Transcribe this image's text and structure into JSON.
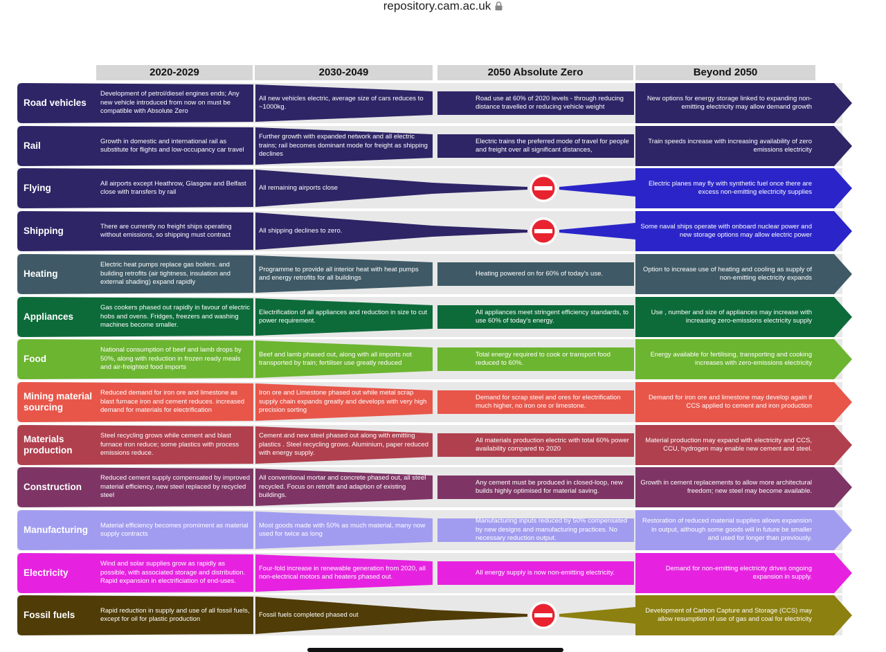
{
  "browser": {
    "url": "repository.cam.ac.uk",
    "lock_icon": "lock-icon"
  },
  "columns": [
    "2020-2029",
    "2030-2049",
    "2050 Absolute Zero",
    "Beyond 2050"
  ],
  "no_entry_icon": "no-entry-icon",
  "rows": [
    {
      "label": "Road vehicles",
      "color": "#2e2566",
      "type": "full",
      "c1": "Development of petrol/diesel engines ends; Any new vehicle introduced from now on must be compatible with Absolute Zero",
      "c2": "All new vehicles electric, average size of cars reduces to ~1000kg.",
      "c3": "Road use at 60% of 2020 levels - through reducing distance travelled or reducing vehicle weight",
      "c4": "New options for energy storage linked to expanding non-emitting electricity may allow demand growth"
    },
    {
      "label": "Rail",
      "color": "#2e2566",
      "type": "full",
      "c1": "Growth in domestic and international rail as substitute for flights and low-occupancy car travel",
      "c2": "Further growth with expanded network and all electric trains; rail becomes dominant mode for freight as shipping declines",
      "c3": "Electric trains the preferred mode of travel for people and freight over all significant distances,",
      "c4": "Train speeds increase with increasing availability of zero emissions electricity"
    },
    {
      "label": "Flying",
      "color": "#2e2566",
      "accent": "#2b25c9",
      "type": "stop",
      "c1": "All airports except Heathrow, Glasgow and Belfast close with transfers by rail",
      "c2": "All remaining airports close",
      "c3": "",
      "c4": "Electric planes may fly with synthetic fuel once there are excess non-emitting electricity supplies"
    },
    {
      "label": "Shipping",
      "color": "#2e2566",
      "accent": "#2b25c9",
      "type": "stop",
      "c1": "There are currently no freight ships operating without emissions, so shipping must contract",
      "c2": "All shipping declines to zero.",
      "c3": "",
      "c4": "Some naval ships operate with onboard nuclear power and new storage options may allow electric power"
    },
    {
      "label": "Heating",
      "color": "#3f5a66",
      "type": "full",
      "c1": "Electric heat pumps replace gas boilers. and building retrofits (air tightness, insulation and external shading) expand rapidly",
      "c2": "Programme to provide all interior heat with heat pumps and energy retrofits for all buildings",
      "c3": "Heating powered on for 60% of today's use.",
      "c4": "Option to increase use of heating and cooling as supply of non-emitting electricity expands"
    },
    {
      "label": "Appliances",
      "color": "#0d6b3a",
      "type": "full",
      "c1": "Gas cookers phased out rapidly in favour of electric hobs and ovens. Fridges, freezers and washing machines become smaller.",
      "c2": "Electrification of all appliances and reduction in size to cut power requirement.",
      "c3": "All appliances meet stringent efficiency standards, to use 60% of today's energy.",
      "c4": "Use , number and size of appliances may increase with increasing zero-emissions electricity supply"
    },
    {
      "label": "Food",
      "color": "#6cb530",
      "type": "full",
      "c1": "National consumption of beef and lamb drops by 50%, along with reduction in frozen ready meals and air-freighted food imports",
      "c2": "Beef and lamb phased out, along with all imports not transported by train; fertiliser use greatly reduced",
      "c3": "Total energy required to cook or transport food reduced to 60%.",
      "c4": "Energy available for fertilising, transporting and cooking increases with zero-emissions electricity"
    },
    {
      "label": "Mining material sourcing",
      "color": "#e8564a",
      "type": "full",
      "c1": "Reduced demand for iron ore and limestone as blast furnace iron and cement reduces. increased demand for materials for electrification",
      "c2": "Iron ore and Limestone phased out while metal scrap supply chain expands greatly and develops with very high precision sorting",
      "c3": "Demand for scrap steel and ores for electrification much higher, no iron ore or limestone.",
      "c4": "Demand for iron ore and limestone may develop again if CCS applied to cement and iron production"
    },
    {
      "label": "Materials production",
      "color": "#b0404e",
      "type": "full",
      "c1": "Steel recycling grows while cement and blast furnace iron reduce; some plastics with process emissions reduce.",
      "c2": "Cement and new steel phased out along with emitting plastics . Steel recycling grows. Aluminium, paper reduced with energy supply.",
      "c3": "All materials production electric with total 60% power availability compared to 2020",
      "c4": "Material production may expand with electricity and CCS, CCU, hydrogen may enable new cement and steel."
    },
    {
      "label": "Construction",
      "color": "#7e3565",
      "type": "full",
      "c1": "Reduced cement supply compensated by improved material efficiency, new steel replaced by recycled steel",
      "c2": "All conventional mortar and concrete phased out, all steel recycled. Focus on retrofit and adaption of existing buildings.",
      "c3": "Any cement must be produced in closed-loop, new builds highly optimised for material saving.",
      "c4": "Growth in cement replacements to allow more architectural freedom; new steel may become available."
    },
    {
      "label": "Manufacturing",
      "color": "#a29cf0",
      "type": "full",
      "c1": "Material efficiency becomes promiment as material supply contracts",
      "c2": "Most goods made with 50% as much material, many now used for twice as long",
      "c3": "Manufacturing inputs reduced by 50% compensated by new designs and manufacturing practices. No necessary reduction output.",
      "c4": "Restoration of reduced material supplies allows expansion in output, although some goods will in future be smaller and used for longer than previously."
    },
    {
      "label": "Electricity",
      "color": "#e622e0",
      "type": "full",
      "c1": "Wind and solar supplies grow as rapidly as possible, with associated storage and distribution. Rapid expansion in electrificiation of end-uses.",
      "c2": "Four-fold increase in renewable generation from 2020, all non-electrical motors and heaters phased out.",
      "c3": "All energy supply is now non-emitting electricity.",
      "c4": "Demand for non-emitting electricity drives ongoing expansion in supply."
    },
    {
      "label": "Fossil fuels",
      "color": "#4f3c07",
      "accent": "#8c8010",
      "type": "stop",
      "c1": "Rapid reduction in supply and use of all fossil fuels, except for oil for plastic production",
      "c2": "Fossil fuels completed phased out",
      "c3": "",
      "c4": "Development of Carbon Capture and Storage (CCS) may allow resumption of use of gas and coal for electricity"
    }
  ]
}
